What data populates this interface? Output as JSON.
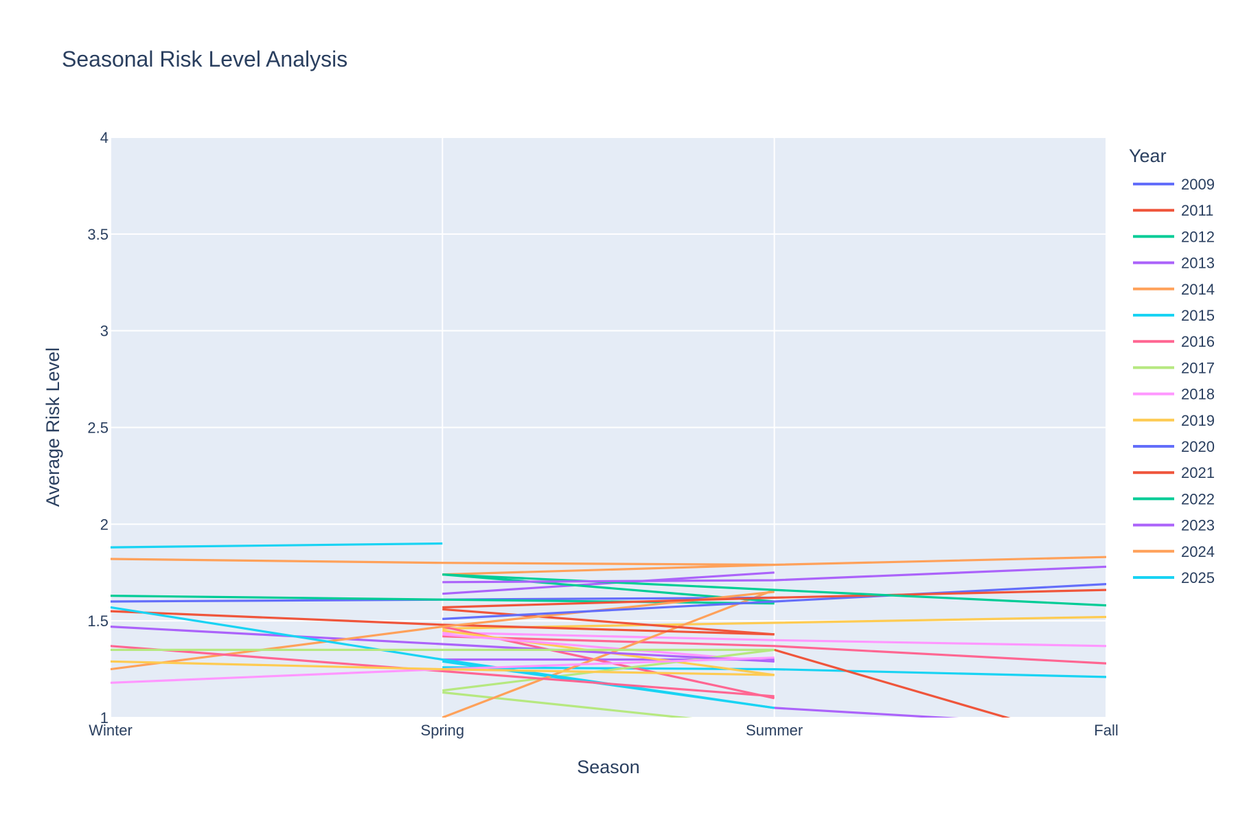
{
  "chart_data": {
    "type": "line",
    "title": "Seasonal Risk Level Analysis",
    "xlabel": "Season",
    "ylabel": "Average Risk Level",
    "categories": [
      "Winter",
      "Spring",
      "Summer",
      "Fall"
    ],
    "ylim": [
      1,
      4
    ],
    "yticks": [
      "1",
      "1.5",
      "2",
      "2.5",
      "3",
      "3.5",
      "4"
    ],
    "grid": true,
    "legend_title": "Year",
    "legend_position": "right",
    "series": [
      {
        "name": "2009",
        "color": "#636efa",
        "values": [
          1.6,
          1.61,
          1.62,
          null
        ]
      },
      {
        "name": "2011",
        "color": "#ef553b",
        "values": [
          1.55,
          1.48,
          1.43,
          null
        ]
      },
      {
        "name": "2012",
        "color": "#00cc96",
        "values": [
          1.63,
          1.61,
          1.59,
          null
        ]
      },
      {
        "name": "2013",
        "color": "#ab63fa",
        "values": [
          1.47,
          1.38,
          1.29,
          null
        ]
      },
      {
        "name": "2014",
        "color": "#ffa15a",
        "values": [
          1.25,
          1.47,
          1.65,
          null
        ]
      },
      {
        "name": "2015",
        "color": "#19d3f3",
        "values": [
          1.57,
          1.3,
          1.05,
          null
        ]
      },
      {
        "name": "2016",
        "color": "#ff6692",
        "values": [
          1.37,
          1.24,
          1.11,
          null
        ]
      },
      {
        "name": "2017",
        "color": "#b6e880",
        "values": [
          1.35,
          1.35,
          1.35,
          null
        ]
      },
      {
        "name": "2018",
        "color": "#ff97ff",
        "values": [
          1.18,
          1.25,
          1.31,
          null
        ]
      },
      {
        "name": "2019",
        "color": "#fecb52",
        "values": [
          1.29,
          1.25,
          1.22,
          null
        ]
      },
      {
        "name": "2020",
        "color": "#636efa",
        "values": [
          null,
          1.51,
          1.6,
          1.69
        ]
      },
      {
        "name": "2021",
        "color": "#ef553b",
        "values": [
          null,
          1.57,
          1.62,
          1.66
        ]
      },
      {
        "name": "2022",
        "color": "#00cc96",
        "values": [
          null,
          1.74,
          1.66,
          1.58
        ]
      },
      {
        "name": "2023",
        "color": "#ab63fa",
        "values": [
          null,
          1.7,
          1.71,
          1.78
        ]
      },
      {
        "name": "2024",
        "color": "#ffa15a",
        "values": [
          1.82,
          1.8,
          1.79,
          1.83
        ]
      },
      {
        "name": "2025",
        "color": "#19d3f3",
        "values": [
          1.88,
          1.9,
          null,
          null
        ]
      }
    ],
    "extra_segments": [
      {
        "color": "#ff97ff",
        "values": [
          null,
          1.44,
          1.4,
          1.37
        ]
      },
      {
        "color": "#fecb52",
        "values": [
          null,
          1.46,
          1.49,
          1.52
        ]
      },
      {
        "color": "#ff6692",
        "values": [
          null,
          1.42,
          1.37,
          1.28
        ]
      },
      {
        "color": "#19d3f3",
        "values": [
          null,
          1.26,
          1.25,
          1.21
        ]
      },
      {
        "color": "#ab63fa",
        "values": [
          null,
          1.64,
          1.75,
          null
        ]
      },
      {
        "color": "#ab63fa",
        "values": [
          null,
          1.3,
          1.3,
          null
        ]
      },
      {
        "color": "#ab63fa",
        "values": [
          null,
          null,
          1.05,
          0.95
        ]
      },
      {
        "color": "#ef553b",
        "values": [
          null,
          null,
          1.35,
          0.85
        ]
      },
      {
        "color": "#ff6692",
        "values": [
          null,
          1.47,
          1.1,
          null
        ]
      },
      {
        "color": "#fecb52",
        "values": [
          null,
          1.45,
          1.22,
          null
        ]
      },
      {
        "color": "#ff97ff",
        "values": [
          null,
          1.43,
          1.29,
          null
        ]
      },
      {
        "color": "#b6e880",
        "values": [
          null,
          1.14,
          1.35,
          null
        ]
      },
      {
        "color": "#b6e880",
        "values": [
          null,
          1.13,
          0.95,
          null
        ]
      },
      {
        "color": "#19d3f3",
        "values": [
          null,
          1.29,
          1.05,
          null
        ]
      },
      {
        "color": "#ffa15a",
        "values": [
          null,
          1.0,
          1.66,
          null
        ]
      },
      {
        "color": "#ef553b",
        "values": [
          null,
          1.56,
          1.43,
          null
        ]
      },
      {
        "color": "#00cc96",
        "values": [
          null,
          1.74,
          1.6,
          null
        ]
      },
      {
        "color": "#ffa15a",
        "values": [
          null,
          1.74,
          1.79,
          null
        ]
      }
    ]
  }
}
